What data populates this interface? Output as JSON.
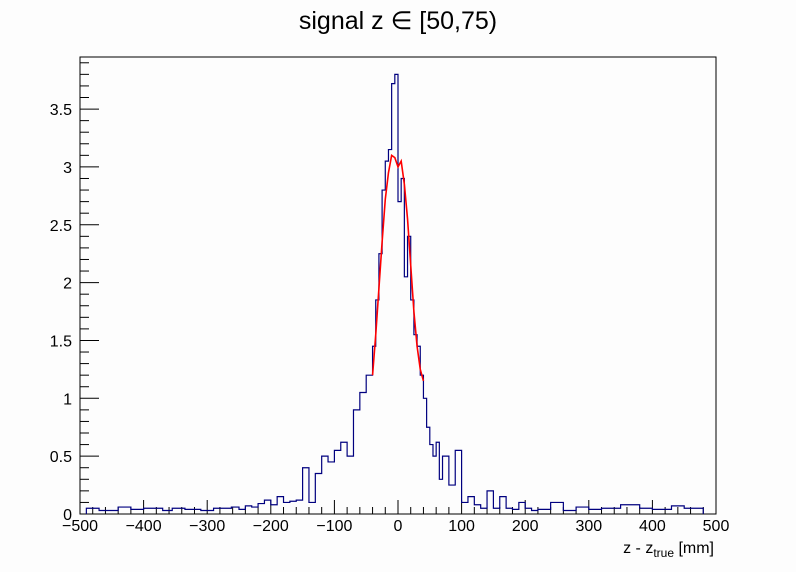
{
  "chart_data": {
    "type": "histogram",
    "title": "signal z ∈ [50,75)",
    "xlabel_main": "z - z",
    "xlabel_sub": "true",
    "xlabel_unit": " [mm]",
    "ylabel": "",
    "xlim": [
      -500,
      500
    ],
    "ylim": [
      0,
      3.95
    ],
    "x_ticks": [
      -500,
      -400,
      -300,
      -200,
      -100,
      0,
      100,
      200,
      300,
      400,
      500
    ],
    "x_tick_labels": [
      "−500",
      "−400",
      "−300",
      "−200",
      "−100",
      "0",
      "100",
      "200",
      "300",
      "400",
      "500"
    ],
    "y_ticks": [
      0,
      0.5,
      1,
      1.5,
      2,
      2.5,
      3,
      3.5
    ],
    "y_tick_labels": [
      "0",
      "0.5",
      "1",
      "1.5",
      "2",
      "2.5",
      "3",
      "3.5"
    ],
    "grid": false,
    "line_color": "#00007f",
    "fit_color": "#ff0000",
    "bin_edges_x": [
      -490,
      -470,
      -440,
      -420,
      -400,
      -370,
      -355,
      -335,
      -310,
      -290,
      -275,
      -262,
      -250,
      -240,
      -230,
      -220,
      -210,
      -200,
      -190,
      -180,
      -170,
      -160,
      -150,
      -140,
      -130,
      -120,
      -110,
      -100,
      -90,
      -80,
      -70,
      -60,
      -50,
      -40,
      -35,
      -30,
      -25,
      -20,
      -15,
      -10,
      -5,
      0,
      5,
      10,
      15,
      20,
      25,
      30,
      35,
      40,
      45,
      50,
      55,
      60,
      65,
      70,
      80,
      90,
      100,
      110,
      120,
      130,
      140,
      150,
      160,
      170,
      180,
      190,
      200,
      210,
      220,
      240,
      260,
      280,
      300,
      320,
      350,
      380,
      400,
      430,
      450,
      480
    ],
    "bin_counts": [
      0.05,
      0.03,
      0.06,
      0.04,
      0.05,
      0.03,
      0.05,
      0.04,
      0.03,
      0.05,
      0.05,
      0.06,
      0.04,
      0.07,
      0.06,
      0.09,
      0.12,
      0.08,
      0.15,
      0.1,
      0.11,
      0.12,
      0.4,
      0.1,
      0.35,
      0.5,
      0.45,
      0.55,
      0.62,
      0.5,
      0.9,
      1.05,
      1.2,
      1.45,
      1.85,
      2.25,
      2.8,
      3.05,
      3.15,
      3.72,
      3.8,
      2.7,
      2.9,
      2.05,
      2.4,
      1.85,
      1.55,
      1.45,
      1.2,
      1.0,
      0.75,
      0.6,
      0.5,
      0.62,
      0.3,
      0.5,
      0.25,
      0.55,
      0.1,
      0.15,
      0.08,
      0.05,
      0.2,
      0.05,
      0.15,
      0.05,
      0.04,
      0.1,
      0.05,
      0.03,
      0.04,
      0.1,
      0.03,
      0.06,
      0.04,
      0.05,
      0.08,
      0.05,
      0.04,
      0.07,
      0.05
    ],
    "fit_curve": {
      "x": [
        -40,
        -35,
        -30,
        -25,
        -20,
        -15,
        -10,
        -5,
        0,
        5,
        10,
        15,
        20,
        25,
        30,
        35,
        40
      ],
      "y": [
        1.2,
        1.55,
        1.95,
        2.35,
        2.72,
        2.95,
        3.1,
        3.08,
        3.0,
        3.05,
        2.85,
        2.55,
        2.15,
        1.75,
        1.45,
        1.25,
        1.15
      ]
    }
  }
}
